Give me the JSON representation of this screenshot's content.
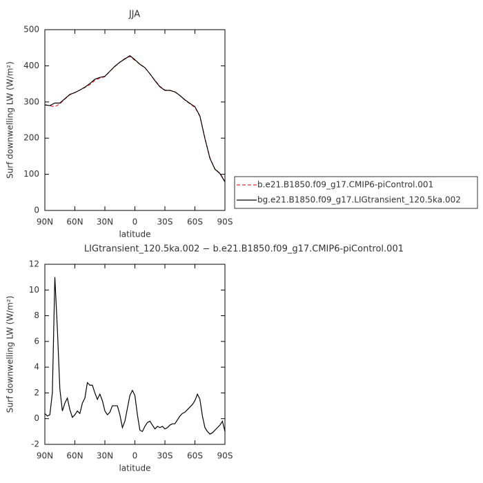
{
  "chart_data": [
    {
      "type": "line",
      "title": "JJA",
      "xlabel": "latitude",
      "ylabel": "Surf downwelling LW (W/m²)",
      "x": [
        90,
        85,
        80,
        75,
        70,
        65,
        60,
        55,
        50,
        45,
        40,
        35,
        30,
        25,
        20,
        15,
        10,
        5,
        0,
        -5,
        -10,
        -15,
        -20,
        -25,
        -30,
        -35,
        -40,
        -45,
        -50,
        -55,
        -60,
        -65,
        -70,
        -75,
        -80,
        -85,
        -90
      ],
      "series": [
        {
          "name": "b.e21.B1850.f09_g17.CMIP6-piControl.001",
          "color": "#e8262b",
          "dash": true,
          "values": [
            292,
            290,
            287,
            295,
            308,
            320,
            326,
            333,
            340,
            348,
            360,
            366,
            370,
            385,
            398,
            410,
            420,
            426,
            415,
            405,
            395,
            378,
            360,
            343,
            333,
            332,
            328,
            318,
            305,
            295,
            285,
            260,
            200,
            145,
            115,
            103,
            80
          ]
        },
        {
          "name": "bg.e21.B1850.f09_g17.LIGtransient_120.5ka.002",
          "color": "#000000",
          "dash": false,
          "values": [
            292,
            290,
            297,
            297,
            309,
            321,
            326,
            333,
            341,
            351,
            363,
            368,
            371,
            385,
            399,
            410,
            419,
            428,
            417,
            404,
            395,
            378,
            359,
            342,
            332,
            332,
            328,
            318,
            306,
            296,
            287,
            261,
            199,
            144,
            114,
            102,
            79
          ]
        }
      ],
      "xlim": [
        90,
        -90
      ],
      "xticks": [
        {
          "value": 90,
          "label": "90N"
        },
        {
          "value": 60,
          "label": "60N"
        },
        {
          "value": 30,
          "label": "30N"
        },
        0,
        {
          "value": -30,
          "label": "30S"
        },
        {
          "value": -60,
          "label": "60S"
        },
        {
          "value": -90,
          "label": "90S"
        }
      ],
      "ylim": [
        0,
        500
      ],
      "yticks": [
        0,
        100,
        200,
        300,
        400,
        500
      ],
      "legend": "right"
    },
    {
      "type": "line",
      "title": "LIGtransient_120.5ka.002 − b.e21.B1850.f09_g17.CMIP6-piControl.001",
      "xlabel": "latitude",
      "ylabel": "Surf downwelling LW (W/m²)",
      "x": [
        90,
        87.5,
        85,
        82.5,
        80,
        77.5,
        75,
        72.5,
        70,
        67.5,
        65,
        62.5,
        60,
        57.5,
        55,
        52.5,
        50,
        47.5,
        45,
        42.5,
        40,
        37.5,
        35,
        32.5,
        30,
        27.5,
        25,
        22.5,
        20,
        17.5,
        15,
        12.5,
        10,
        7.5,
        5,
        2.5,
        0,
        -2.5,
        -5,
        -7.5,
        -10,
        -12.5,
        -15,
        -17.5,
        -20,
        -22.5,
        -25,
        -27.5,
        -30,
        -32.5,
        -35,
        -37.5,
        -40,
        -42.5,
        -45,
        -47.5,
        -50,
        -52.5,
        -55,
        -57.5,
        -60,
        -62.5,
        -65,
        -67.5,
        -70,
        -72.5,
        -75,
        -77.5,
        -80,
        -82.5,
        -85,
        -87.5,
        -90
      ],
      "color": "#000000",
      "values": [
        0.4,
        0.2,
        0.3,
        2,
        11,
        7,
        2.3,
        0.6,
        1.2,
        1.6,
        0.7,
        0.1,
        0.3,
        0.6,
        0.4,
        1.2,
        1.6,
        2.8,
        2.6,
        2.6,
        2,
        1.5,
        1.9,
        1.4,
        0.6,
        0.3,
        0.5,
        1,
        1,
        1,
        0.3,
        -0.7,
        -0.2,
        0.8,
        1.8,
        2.2,
        1.8,
        0.3,
        -0.9,
        -1,
        -0.6,
        -0.3,
        -0.2,
        -0.5,
        -0.8,
        -0.6,
        -0.7,
        -0.6,
        -0.8,
        -0.7,
        -0.5,
        -0.4,
        -0.4,
        -0.1,
        0.2,
        0.4,
        0.5,
        0.7,
        0.9,
        1.1,
        1.4,
        1.9,
        1.5,
        0.2,
        -0.7,
        -1,
        -1.2,
        -1.1,
        -0.9,
        -0.7,
        -0.5,
        -0.2,
        -1
      ],
      "xlim": [
        90,
        -90
      ],
      "xticks": [
        {
          "value": 90,
          "label": "90N"
        },
        {
          "value": 60,
          "label": "60N"
        },
        {
          "value": 30,
          "label": "30N"
        },
        0,
        {
          "value": -30,
          "label": "30S"
        },
        {
          "value": -60,
          "label": "60S"
        },
        {
          "value": -90,
          "label": "90S"
        }
      ],
      "ylim": [
        -2,
        12
      ],
      "yticks": [
        -2,
        0,
        2,
        4,
        6,
        8,
        10,
        12
      ]
    }
  ]
}
